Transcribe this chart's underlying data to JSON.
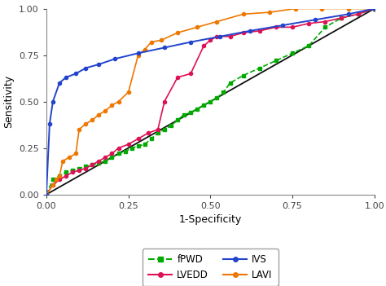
{
  "title": "",
  "xlabel": "1-Specificity",
  "ylabel": "Sensitivity",
  "xlim": [
    0,
    1.0
  ],
  "ylim": [
    0,
    1.0
  ],
  "xticks": [
    0.0,
    0.25,
    0.5,
    0.75,
    1.0
  ],
  "yticks": [
    0.0,
    0.25,
    0.5,
    0.75,
    1.0
  ],
  "xtick_labels": [
    "0.00",
    "0.25",
    "0.50",
    "0.75",
    "1.00"
  ],
  "ytick_labels": [
    "0.00",
    "0.25",
    "0.50",
    "0.75",
    "1.00"
  ],
  "fPWD_x": [
    0.0,
    0.02,
    0.04,
    0.06,
    0.08,
    0.1,
    0.12,
    0.14,
    0.16,
    0.18,
    0.2,
    0.22,
    0.24,
    0.26,
    0.28,
    0.3,
    0.32,
    0.34,
    0.36,
    0.38,
    0.4,
    0.42,
    0.44,
    0.46,
    0.48,
    0.5,
    0.52,
    0.54,
    0.56,
    0.6,
    0.65,
    0.7,
    0.75,
    0.8,
    0.85,
    0.9,
    0.95,
    1.0
  ],
  "fPWD_y": [
    0.0,
    0.08,
    0.1,
    0.12,
    0.13,
    0.14,
    0.15,
    0.16,
    0.17,
    0.18,
    0.2,
    0.22,
    0.23,
    0.25,
    0.26,
    0.27,
    0.3,
    0.33,
    0.35,
    0.37,
    0.4,
    0.43,
    0.44,
    0.46,
    0.48,
    0.5,
    0.52,
    0.55,
    0.6,
    0.64,
    0.68,
    0.72,
    0.76,
    0.8,
    0.9,
    0.95,
    0.97,
    1.0
  ],
  "LVEDD_x": [
    0.0,
    0.02,
    0.04,
    0.06,
    0.08,
    0.1,
    0.12,
    0.14,
    0.16,
    0.18,
    0.2,
    0.22,
    0.25,
    0.28,
    0.31,
    0.34,
    0.36,
    0.4,
    0.44,
    0.48,
    0.5,
    0.52,
    0.56,
    0.6,
    0.65,
    0.7,
    0.75,
    0.8,
    0.85,
    0.9,
    0.95,
    1.0
  ],
  "LVEDD_y": [
    0.0,
    0.05,
    0.08,
    0.1,
    0.12,
    0.13,
    0.14,
    0.16,
    0.18,
    0.2,
    0.22,
    0.25,
    0.27,
    0.3,
    0.33,
    0.35,
    0.5,
    0.63,
    0.65,
    0.8,
    0.83,
    0.85,
    0.85,
    0.87,
    0.88,
    0.9,
    0.9,
    0.92,
    0.93,
    0.95,
    0.97,
    1.0
  ],
  "IVS_x": [
    0.0,
    0.01,
    0.02,
    0.04,
    0.06,
    0.09,
    0.12,
    0.16,
    0.21,
    0.28,
    0.36,
    0.44,
    0.53,
    0.62,
    0.72,
    0.82,
    0.92,
    1.0
  ],
  "IVS_y": [
    0.0,
    0.38,
    0.5,
    0.6,
    0.63,
    0.65,
    0.68,
    0.7,
    0.73,
    0.76,
    0.79,
    0.82,
    0.85,
    0.88,
    0.91,
    0.94,
    0.97,
    1.0
  ],
  "LAVI_x": [
    0.0,
    0.02,
    0.03,
    0.04,
    0.05,
    0.07,
    0.09,
    0.1,
    0.12,
    0.14,
    0.16,
    0.18,
    0.2,
    0.22,
    0.25,
    0.28,
    0.3,
    0.32,
    0.35,
    0.4,
    0.46,
    0.52,
    0.6,
    0.68,
    0.76,
    0.84,
    0.92,
    1.0
  ],
  "LAVI_y": [
    0.0,
    0.05,
    0.08,
    0.1,
    0.18,
    0.2,
    0.22,
    0.35,
    0.38,
    0.4,
    0.43,
    0.45,
    0.48,
    0.5,
    0.55,
    0.75,
    0.78,
    0.82,
    0.83,
    0.87,
    0.9,
    0.93,
    0.97,
    0.98,
    1.0,
    1.0,
    1.0,
    1.0
  ],
  "fPWD_color": "#00aa00",
  "LVEDD_color": "#dd1155",
  "IVS_color": "#2244cc",
  "LAVI_color": "#ee7700",
  "diagonal_color": "#111111",
  "figsize": [
    4.74,
    3.51
  ],
  "dpi": 100
}
